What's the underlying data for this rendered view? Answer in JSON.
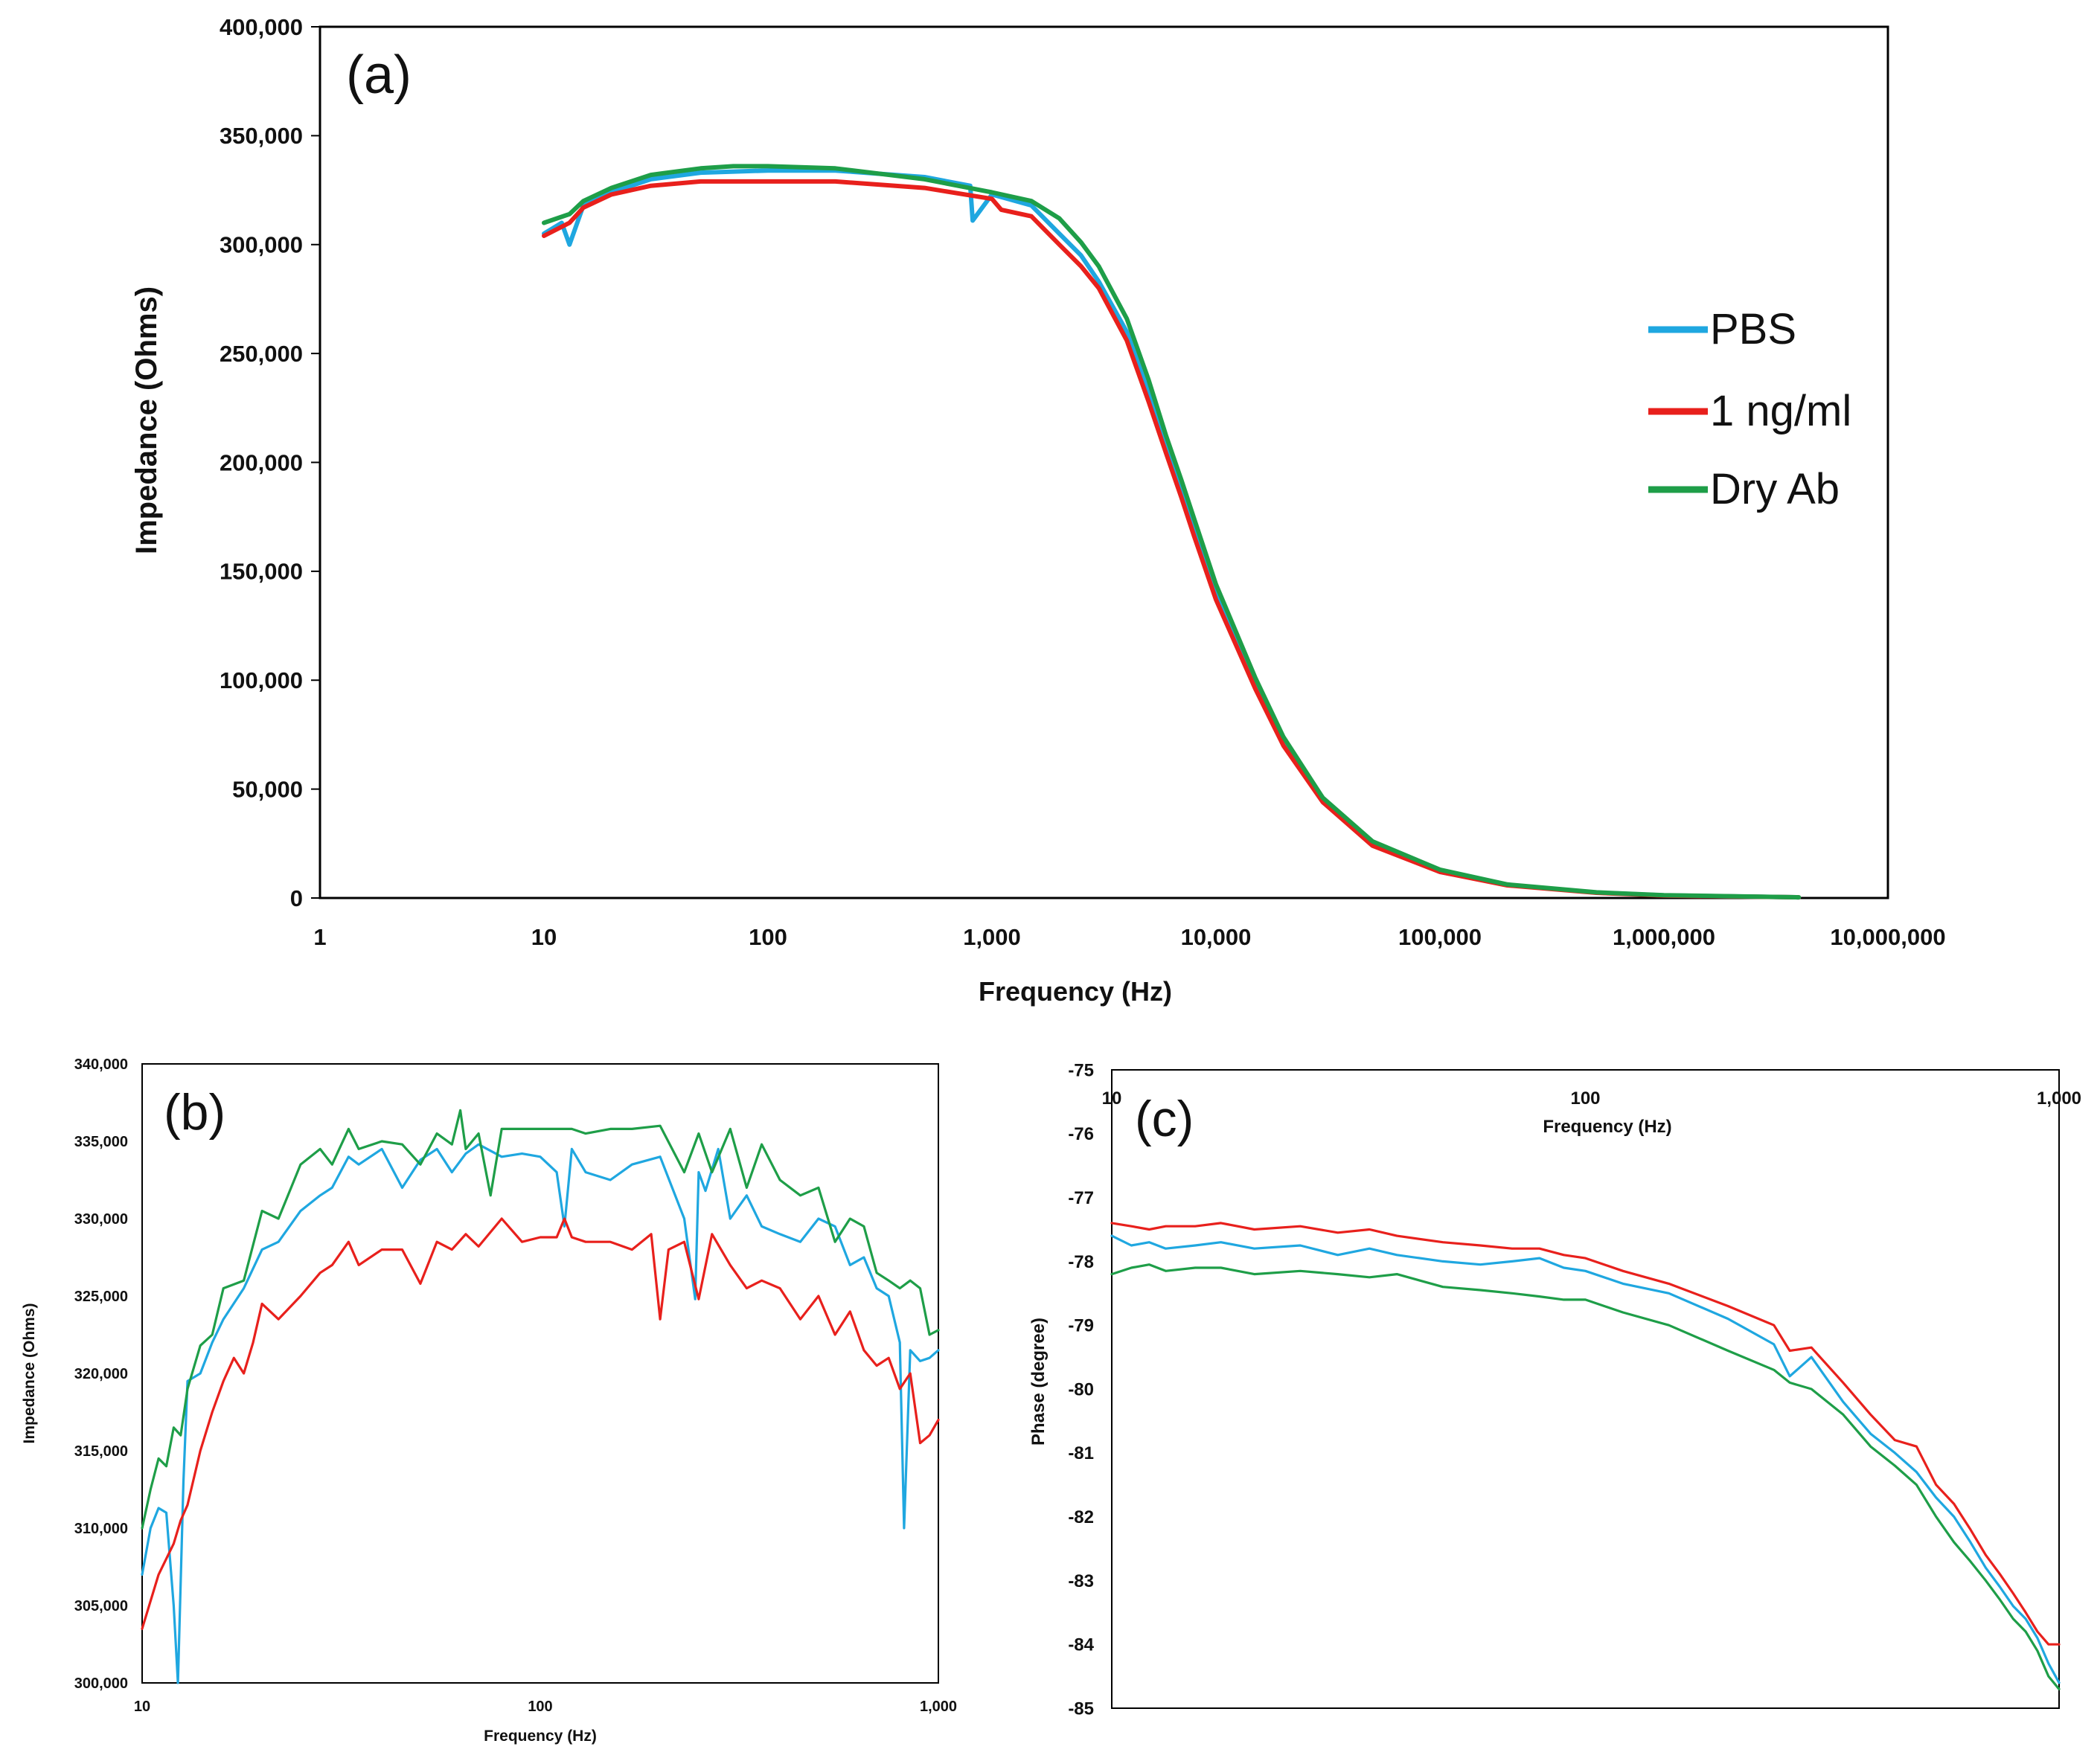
{
  "colors": {
    "PBS": "#1fa7e0",
    "1 ng/ml": "#e8201c",
    "Dry Ab": "#1e9e48"
  },
  "chart_data": [
    {
      "panel": "(a)",
      "type": "line",
      "xscale": "log",
      "xlim": [
        1,
        10000000
      ],
      "ylim": [
        0,
        400000
      ],
      "xlabel": "Frequency (Hz)",
      "ylabel": "Impedance (Ohms)",
      "xticks": [
        1,
        10,
        100,
        1000,
        10000,
        100000,
        1000000,
        10000000
      ],
      "xtick_labels": [
        "1",
        "10",
        "100",
        "1,000",
        "10,000",
        "100,000",
        "1,000,000",
        "10,000,000"
      ],
      "yticks": [
        0,
        50000,
        100000,
        150000,
        200000,
        250000,
        300000,
        350000,
        400000
      ],
      "ytick_labels": [
        "0",
        "50,000",
        "100,000",
        "150,000",
        "200,000",
        "250,000",
        "300,000",
        "350,000",
        "400,000"
      ],
      "legend": [
        "PBS",
        "1 ng/ml",
        "Dry Ab"
      ],
      "legend_position": "right",
      "series": [
        {
          "name": "PBS",
          "x": [
            10,
            12,
            13,
            15,
            20,
            30,
            50,
            100,
            200,
            500,
            800,
            820,
            1000,
            1500,
            2000,
            2500,
            3000,
            4000,
            5000,
            6000,
            7000,
            8000,
            10000,
            15000,
            20000,
            30000,
            50000,
            100000,
            200000,
            500000,
            1000000,
            4000000
          ],
          "y": [
            305000,
            310000,
            300000,
            318000,
            324000,
            330000,
            333000,
            334000,
            334000,
            331000,
            327000,
            311000,
            323000,
            318000,
            305000,
            295000,
            283000,
            260000,
            232000,
            208000,
            188000,
            170000,
            140000,
            98000,
            72000,
            45000,
            25000,
            12000,
            6000,
            2500,
            1200,
            300
          ]
        },
        {
          "name": "1 ng/ml",
          "x": [
            10,
            13,
            15,
            20,
            30,
            50,
            100,
            200,
            500,
            1000,
            1100,
            1500,
            2000,
            2500,
            3000,
            4000,
            5000,
            6000,
            7000,
            8000,
            10000,
            15000,
            20000,
            30000,
            50000,
            100000,
            200000,
            500000,
            1000000,
            4000000
          ],
          "y": [
            304000,
            310000,
            317000,
            323000,
            327000,
            329000,
            329000,
            329000,
            326000,
            321000,
            316000,
            313000,
            300000,
            290000,
            280000,
            256000,
            228000,
            204000,
            184000,
            166000,
            137000,
            96000,
            70000,
            44000,
            24000,
            12000,
            5800,
            2400,
            1100,
            300
          ]
        },
        {
          "name": "Dry Ab",
          "x": [
            10,
            13,
            15,
            20,
            30,
            50,
            70,
            100,
            200,
            500,
            1000,
            1500,
            2000,
            2500,
            3000,
            4000,
            5000,
            6000,
            7000,
            8000,
            10000,
            15000,
            20000,
            30000,
            50000,
            100000,
            200000,
            500000,
            1000000,
            4000000
          ],
          "y": [
            310000,
            314000,
            320000,
            326000,
            332000,
            335000,
            336000,
            336000,
            335000,
            330000,
            324000,
            320000,
            312000,
            301000,
            290000,
            266000,
            238000,
            212000,
            192000,
            174000,
            144000,
            101000,
            74000,
            46000,
            26000,
            13000,
            6200,
            2600,
            1300,
            300
          ]
        }
      ]
    },
    {
      "panel": "(b)",
      "type": "line",
      "xscale": "log",
      "xlim": [
        10,
        1000
      ],
      "ylim": [
        300000,
        340000
      ],
      "xlabel": "Frequency (Hz)",
      "ylabel": "Impedance (Ohms)",
      "xticks": [
        10,
        100,
        1000
      ],
      "xtick_labels": [
        "10",
        "100",
        "1,000"
      ],
      "yticks": [
        300000,
        305000,
        310000,
        315000,
        320000,
        325000,
        330000,
        335000,
        340000
      ],
      "ytick_labels": [
        "300,000",
        "305,000",
        "310,000",
        "315,000",
        "320,000",
        "325,000",
        "330,000",
        "335,000",
        "340,000"
      ],
      "series": [
        {
          "name": "PBS",
          "x": [
            10,
            10.5,
            11,
            11.5,
            12,
            12.3,
            12.7,
            13,
            14,
            15,
            16,
            18,
            20,
            22,
            25,
            28,
            30,
            33,
            35,
            40,
            45,
            50,
            55,
            60,
            65,
            70,
            80,
            90,
            100,
            110,
            115,
            120,
            130,
            150,
            170,
            200,
            230,
            245,
            250,
            260,
            280,
            300,
            330,
            360,
            400,
            450,
            500,
            550,
            600,
            650,
            700,
            750,
            800,
            820,
            850,
            900,
            950,
            1000
          ],
          "y": [
            307000,
            310000,
            311300,
            311000,
            305000,
            300000,
            313000,
            319500,
            320000,
            322000,
            323500,
            325500,
            328000,
            328500,
            330500,
            331500,
            332000,
            334000,
            333500,
            334500,
            332000,
            333800,
            334500,
            333000,
            334200,
            334800,
            334000,
            334200,
            334000,
            333000,
            329500,
            334500,
            333000,
            332500,
            333500,
            334000,
            330000,
            324800,
            333000,
            331800,
            334500,
            330000,
            331500,
            329500,
            329000,
            328500,
            330000,
            329500,
            327000,
            327500,
            325500,
            325000,
            322000,
            310000,
            321500,
            320800,
            321000,
            321500
          ]
        },
        {
          "name": "1 ng/ml",
          "x": [
            10,
            11,
            12,
            12.5,
            13,
            14,
            15,
            16,
            17,
            18,
            19,
            20,
            22,
            25,
            28,
            30,
            33,
            35,
            40,
            45,
            50,
            55,
            60,
            65,
            70,
            80,
            90,
            100,
            110,
            115,
            120,
            130,
            150,
            170,
            190,
            200,
            210,
            230,
            250,
            270,
            300,
            330,
            360,
            400,
            450,
            500,
            550,
            600,
            650,
            700,
            750,
            800,
            850,
            900,
            950,
            1000
          ],
          "y": [
            303500,
            307000,
            309000,
            310500,
            311500,
            315000,
            317500,
            319500,
            321000,
            320000,
            322000,
            324500,
            323500,
            325000,
            326500,
            327000,
            328500,
            327000,
            328000,
            328000,
            325800,
            328500,
            328000,
            329000,
            328200,
            330000,
            328500,
            328800,
            328800,
            330000,
            328800,
            328500,
            328500,
            328000,
            329000,
            323500,
            328000,
            328500,
            324800,
            329000,
            327000,
            325500,
            326000,
            325500,
            323500,
            325000,
            322500,
            324000,
            321500,
            320500,
            321000,
            319000,
            320000,
            315500,
            316000,
            317000
          ]
        },
        {
          "name": "Dry Ab",
          "x": [
            10,
            10.5,
            11,
            11.5,
            12,
            12.5,
            13,
            14,
            15,
            16,
            18,
            20,
            22,
            25,
            28,
            30,
            33,
            35,
            40,
            45,
            50,
            55,
            60,
            63,
            65,
            70,
            75,
            80,
            90,
            100,
            110,
            120,
            130,
            150,
            170,
            200,
            230,
            250,
            270,
            300,
            330,
            360,
            400,
            450,
            500,
            550,
            600,
            650,
            700,
            750,
            800,
            850,
            900,
            950,
            1000
          ],
          "y": [
            310000,
            312500,
            314500,
            314000,
            316500,
            316000,
            319000,
            321800,
            322500,
            325500,
            326000,
            330500,
            330000,
            333500,
            334500,
            333500,
            335800,
            334500,
            335000,
            334800,
            333500,
            335500,
            334800,
            337000,
            334500,
            335500,
            331500,
            335800,
            335800,
            335800,
            335800,
            335800,
            335500,
            335800,
            335800,
            336000,
            333000,
            335500,
            333000,
            335800,
            332000,
            334800,
            332500,
            331500,
            332000,
            328500,
            330000,
            329500,
            326500,
            326000,
            325500,
            326000,
            325500,
            322500,
            322800
          ]
        }
      ]
    },
    {
      "panel": "(c)",
      "type": "line",
      "xscale": "log",
      "xlim": [
        10,
        1000
      ],
      "ylim": [
        -85,
        -75
      ],
      "xlabel": "Frequency (Hz)",
      "ylabel": "Phase  (degree)",
      "xticks": [
        10,
        100,
        1000
      ],
      "xtick_labels": [
        "10",
        "100",
        "1,000"
      ],
      "yticks": [
        -75,
        -76,
        -77,
        -78,
        -79,
        -80,
        -81,
        -82,
        -83,
        -84,
        -85
      ],
      "ytick_labels": [
        "-75",
        "-76",
        "-77",
        "-78",
        "-79",
        "-80",
        "-81",
        "-82",
        "-83",
        "-84",
        "-85"
      ],
      "series": [
        {
          "name": "PBS",
          "x": [
            10,
            11,
            12,
            13,
            15,
            17,
            20,
            25,
            30,
            35,
            40,
            50,
            60,
            70,
            80,
            90,
            100,
            120,
            150,
            200,
            250,
            270,
            300,
            350,
            400,
            450,
            500,
            550,
            600,
            650,
            700,
            750,
            800,
            850,
            900,
            950,
            1000
          ],
          "y": [
            -77.6,
            -77.75,
            -77.7,
            -77.8,
            -77.75,
            -77.7,
            -77.8,
            -77.75,
            -77.9,
            -77.8,
            -77.9,
            -78.0,
            -78.05,
            -78.0,
            -77.95,
            -78.1,
            -78.15,
            -78.35,
            -78.5,
            -78.9,
            -79.3,
            -79.8,
            -79.5,
            -80.2,
            -80.7,
            -81.0,
            -81.3,
            -81.7,
            -82.0,
            -82.4,
            -82.8,
            -83.1,
            -83.4,
            -83.6,
            -83.9,
            -84.3,
            -84.6
          ]
        },
        {
          "name": "1 ng/ml",
          "x": [
            10,
            11,
            12,
            13,
            15,
            17,
            20,
            25,
            30,
            35,
            40,
            50,
            60,
            70,
            80,
            90,
            100,
            120,
            150,
            200,
            250,
            270,
            300,
            350,
            400,
            450,
            500,
            550,
            600,
            650,
            700,
            750,
            800,
            850,
            900,
            950,
            1000
          ],
          "y": [
            -77.4,
            -77.45,
            -77.5,
            -77.45,
            -77.45,
            -77.4,
            -77.5,
            -77.45,
            -77.55,
            -77.5,
            -77.6,
            -77.7,
            -77.75,
            -77.8,
            -77.8,
            -77.9,
            -77.95,
            -78.15,
            -78.35,
            -78.7,
            -79.0,
            -79.4,
            -79.35,
            -79.9,
            -80.4,
            -80.8,
            -80.9,
            -81.5,
            -81.8,
            -82.2,
            -82.6,
            -82.9,
            -83.2,
            -83.5,
            -83.8,
            -84.0,
            -84.0
          ]
        },
        {
          "name": "Dry Ab",
          "x": [
            10,
            11,
            12,
            13,
            15,
            17,
            20,
            25,
            30,
            35,
            40,
            50,
            60,
            70,
            80,
            90,
            100,
            120,
            150,
            200,
            250,
            270,
            300,
            350,
            400,
            450,
            500,
            550,
            600,
            650,
            700,
            750,
            800,
            850,
            900,
            950,
            1000
          ],
          "y": [
            -78.2,
            -78.1,
            -78.05,
            -78.15,
            -78.1,
            -78.1,
            -78.2,
            -78.15,
            -78.2,
            -78.25,
            -78.2,
            -78.4,
            -78.45,
            -78.5,
            -78.55,
            -78.6,
            -78.6,
            -78.8,
            -79.0,
            -79.4,
            -79.7,
            -79.9,
            -80.0,
            -80.4,
            -80.9,
            -81.2,
            -81.5,
            -82.0,
            -82.4,
            -82.7,
            -83.0,
            -83.3,
            -83.6,
            -83.8,
            -84.1,
            -84.5,
            -84.7
          ]
        }
      ]
    }
  ]
}
